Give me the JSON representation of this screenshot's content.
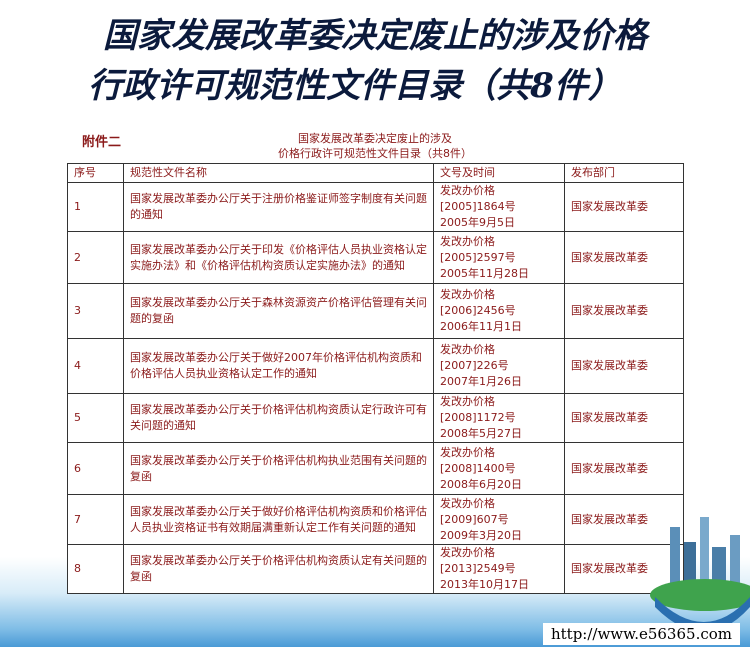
{
  "slide": {
    "title_line1": "国家发展改革委决定废止的涉及价格",
    "title_line2": "行政许可规范性文件目录（共8件）",
    "annex_label": "附件二",
    "doc_title_line1": "国家发展改革委决定废止的涉及",
    "doc_title_line2": "价格行政许可规范性文件目录（共8件）",
    "url": "http://www.e56365.com"
  },
  "table": {
    "headers": [
      "序号",
      "规范性文件名称",
      "文号及时间",
      "发布部门"
    ],
    "rows": [
      {
        "no": "1",
        "name": "国家发展改革委办公厅关于注册价格鉴证师签字制度有关问题的通知",
        "doc": "发改办价格",
        "num": "[2005]1864号",
        "date": "2005年9月5日",
        "dept": "国家发展改革委"
      },
      {
        "no": "2",
        "name": "国家发展改革委办公厅关于印发《价格评估人员执业资格认定实施办法》和《价格评估机构资质认定实施办法》的通知",
        "doc": "发改办价格",
        "num": "[2005]2597号",
        "date": "2005年11月28日",
        "dept": "国家发展改革委"
      },
      {
        "no": "3",
        "name": "国家发展改革委办公厅关于森林资源资产价格评估管理有关问题的复函",
        "doc": "发改办价格",
        "num": "[2006]2456号",
        "date": "2006年11月1日",
        "dept": "国家发展改革委"
      },
      {
        "no": "4",
        "name": "国家发展改革委办公厅关于做好2007年价格评估机构资质和价格评估人员执业资格认定工作的通知",
        "doc": "发改办价格",
        "num": "[2007]226号",
        "date": "2007年1月26日",
        "dept": "国家发展改革委"
      },
      {
        "no": "5",
        "name": "国家发展改革委办公厅关于价格评估机构资质认定行政许可有关问题的通知",
        "doc": "发改办价格",
        "num": "[2008]1172号",
        "date": "2008年5月27日",
        "dept": "国家发展改革委"
      },
      {
        "no": "6",
        "name": "国家发展改革委办公厅关于价格评估机构执业范围有关问题的复函",
        "doc": "发改办价格",
        "num": "[2008]1400号",
        "date": "2008年6月20日",
        "dept": "国家发展改革委"
      },
      {
        "no": "7",
        "name": "国家发展改革委办公厅关于做好价格评估机构资质和价格评估人员执业资格证书有效期届满重新认定工作有关问题的通知",
        "doc": "发改办价格",
        "num": "[2009]607号",
        "date": "2009年3月20日",
        "dept": "国家发展改革委"
      },
      {
        "no": "8",
        "name": "国家发展改革委办公厅关于价格评估机构资质认定有关问题的复函",
        "doc": "发改办价格",
        "num": "[2013]2549号",
        "date": "2013年10月17日",
        "dept": "国家发展改革委"
      }
    ]
  }
}
